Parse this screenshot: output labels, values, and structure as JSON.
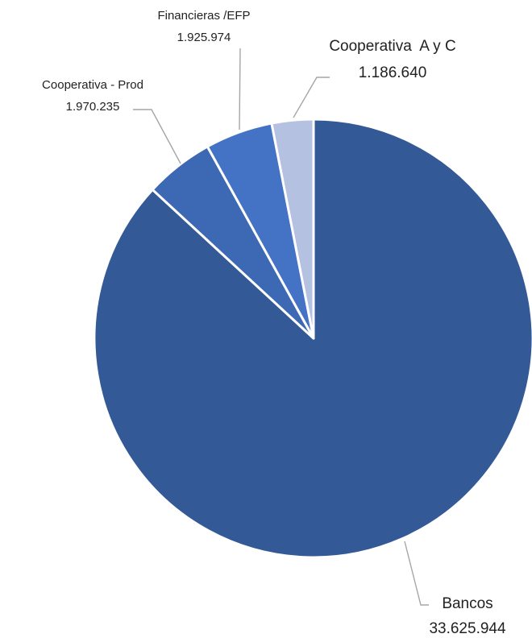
{
  "chart_data": {
    "type": "pie",
    "categories": [
      "Bancos",
      "Cooperativa - Prod",
      "Financieras /EFP",
      "Cooperativa  A y C"
    ],
    "values": [
      33625944,
      1970235,
      1925974,
      1186640
    ],
    "value_labels": [
      "33.625.944",
      "1.970.235",
      "1.925.974",
      "1.186.640"
    ],
    "colors": [
      "#335a97",
      "#3d68b3",
      "#4472c4",
      "#b4c1e1"
    ],
    "title": "",
    "legend": "none",
    "data_labels": "category and value, outside with leader lines"
  }
}
